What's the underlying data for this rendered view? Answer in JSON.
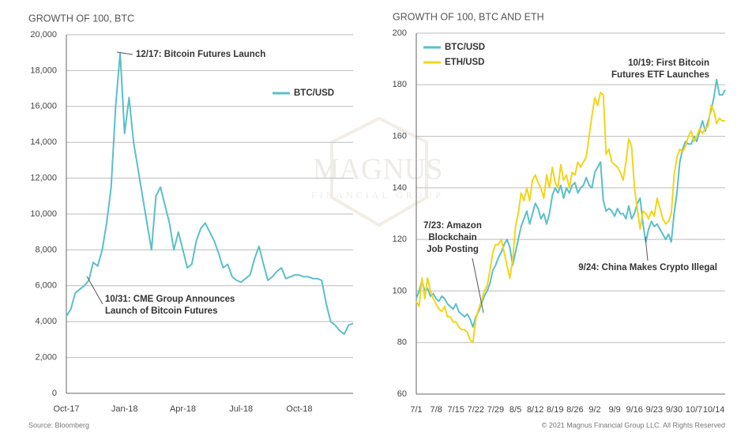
{
  "chart_data": [
    {
      "type": "line",
      "title": "GROWTH OF 100, BTC",
      "categories": [
        "Oct-17",
        null,
        null,
        null,
        null,
        null,
        null,
        null,
        null,
        null,
        null,
        null,
        null,
        "Jan-18",
        null,
        null,
        null,
        null,
        null,
        null,
        null,
        null,
        null,
        null,
        null,
        null,
        "Apr-18",
        null,
        null,
        null,
        null,
        null,
        null,
        null,
        null,
        null,
        null,
        null,
        null,
        "Jul-18",
        null,
        null,
        null,
        null,
        null,
        null,
        null,
        null,
        null,
        null,
        null,
        null,
        "Oct-18",
        null,
        null,
        null,
        null,
        null,
        null,
        null,
        null,
        null,
        null,
        null,
        null
      ],
      "series": [
        {
          "name": "BTC/USD",
          "color": "#5bbfc8",
          "values": [
            4300,
            4700,
            5600,
            5800,
            6000,
            6300,
            7300,
            7100,
            8000,
            9500,
            11500,
            16000,
            19000,
            14500,
            16500,
            14000,
            12500,
            11000,
            9500,
            8000,
            11000,
            11500,
            10500,
            9500,
            8000,
            9000,
            8000,
            7000,
            7200,
            8500,
            9200,
            9500,
            9000,
            8500,
            7800,
            7000,
            7200,
            6500,
            6300,
            6200,
            6400,
            6600,
            7500,
            8200,
            7200,
            6300,
            6500,
            6800,
            7000,
            6400,
            6500,
            6600,
            6600,
            6500,
            6500,
            6400,
            6400,
            6300,
            5000,
            4000,
            3800,
            3500,
            3300,
            3800,
            3900
          ]
        }
      ],
      "ylim": [
        0,
        20000
      ],
      "yticks": [
        0,
        {
          "value": 2000,
          "label": "2,000"
        },
        {
          "value": 4000,
          "label": "4,000"
        },
        {
          "value": 6000,
          "label": "6,000"
        },
        {
          "value": 8000,
          "label": "8,000"
        },
        {
          "value": 10000,
          "label": "10,000"
        },
        {
          "value": 12000,
          "label": "12,000"
        },
        {
          "value": 14000,
          "label": "14,000"
        },
        {
          "value": 16000,
          "label": "16,000"
        },
        {
          "value": 18000,
          "label": "18,000"
        },
        {
          "value": 20000,
          "label": "20,000"
        }
      ],
      "grid": true,
      "legend": "upper right",
      "annotations": [
        {
          "lines": [
            "12/17: Bitcoin Futures Launch"
          ]
        },
        {
          "lines": [
            "10/31: CME Group Announces",
            "Launch of Bitcoin Futures"
          ]
        }
      ]
    },
    {
      "type": "line",
      "title": "GROWTH OF 100, BTC AND ETH",
      "categories": [
        "7/1",
        null,
        null,
        null,
        null,
        null,
        null,
        "7/8",
        null,
        null,
        null,
        null,
        null,
        null,
        "7/15",
        null,
        null,
        null,
        null,
        null,
        null,
        "7/22",
        null,
        null,
        null,
        null,
        null,
        null,
        "7/29",
        null,
        null,
        null,
        null,
        null,
        null,
        "8/5",
        null,
        null,
        null,
        null,
        null,
        null,
        "8/12",
        null,
        null,
        null,
        null,
        null,
        null,
        "8/19",
        null,
        null,
        null,
        null,
        null,
        null,
        "8/26",
        null,
        null,
        null,
        null,
        null,
        null,
        "9/2",
        null,
        null,
        null,
        null,
        null,
        null,
        "9/9",
        null,
        null,
        null,
        null,
        null,
        null,
        "9/16",
        null,
        null,
        null,
        null,
        null,
        null,
        "9/23",
        null,
        null,
        null,
        null,
        null,
        null,
        "9/30",
        null,
        null,
        null,
        null,
        null,
        null,
        "10/7",
        null,
        null,
        null,
        null,
        null,
        null,
        "10/14",
        null,
        null,
        null,
        null
      ],
      "series": [
        {
          "name": "BTC/USD",
          "color": "#5bbfc8",
          "values": [
            97,
            100,
            104,
            100,
            101,
            98,
            99,
            97,
            96,
            98,
            97,
            95,
            94,
            93,
            95,
            92,
            91,
            90,
            91,
            89,
            86,
            90,
            92,
            95,
            98,
            100,
            103,
            108,
            110,
            113,
            115,
            118,
            120,
            117,
            110,
            115,
            120,
            125,
            128,
            131,
            126,
            130,
            134,
            132,
            128,
            130,
            126,
            130,
            137,
            140,
            138,
            141,
            136,
            140,
            138,
            141,
            142,
            138,
            140,
            141,
            144,
            141,
            140,
            146,
            148,
            150,
            135,
            131,
            132,
            131,
            129,
            132,
            130,
            130,
            128,
            133,
            128,
            130,
            134,
            136,
            126,
            119,
            124,
            127,
            125,
            126,
            124,
            122,
            120,
            122,
            119,
            130,
            138,
            150,
            155,
            158,
            157,
            157,
            160,
            158,
            162,
            166,
            162,
            166,
            170,
            175,
            182,
            176,
            176,
            178
          ]
        },
        {
          "name": "ETH/USD",
          "color": "#f2d51a",
          "values": [
            96,
            94,
            105,
            97,
            105,
            100,
            97,
            95,
            93,
            92,
            94,
            90,
            90,
            88,
            88,
            86,
            85,
            85,
            84,
            81,
            80,
            89,
            93,
            96,
            100,
            102,
            108,
            115,
            118,
            118,
            120,
            115,
            110,
            105,
            112,
            125,
            130,
            138,
            135,
            140,
            135,
            143,
            145,
            142,
            140,
            136,
            145,
            140,
            148,
            142,
            140,
            149,
            143,
            145,
            140,
            146,
            145,
            150,
            148,
            150,
            152,
            160,
            168,
            175,
            172,
            177,
            176,
            153,
            155,
            150,
            149,
            148,
            146,
            143,
            150,
            159,
            156,
            140,
            132,
            124,
            131,
            130,
            128,
            131,
            129,
            136,
            132,
            128,
            126,
            127,
            130,
            145,
            152,
            155,
            154,
            156,
            160,
            162,
            158,
            160,
            163,
            161,
            163,
            164,
            172,
            170,
            165,
            167,
            166,
            166
          ]
        }
      ],
      "ylim": [
        60,
        200
      ],
      "yticks": [
        60,
        80,
        100,
        120,
        140,
        160,
        180,
        200
      ],
      "grid": true,
      "legend": "upper left",
      "annotations": [
        {
          "lines": [
            "10/19: First Bitcoin",
            "Futures ETF Launches"
          ]
        },
        {
          "lines": [
            "7/23: Amazon",
            "Blockchain",
            "Job Posting"
          ]
        },
        {
          "lines": [
            "9/24: China Makes Crypto Illegal"
          ]
        }
      ]
    }
  ],
  "watermark": {
    "name": "MAGNUS",
    "sub": "FINANCIAL GROUP"
  },
  "footer": {
    "source": "Source: Bloomberg",
    "copyright": "© 2021 Magnus Financial Group LLC. All Rights Reserved"
  }
}
